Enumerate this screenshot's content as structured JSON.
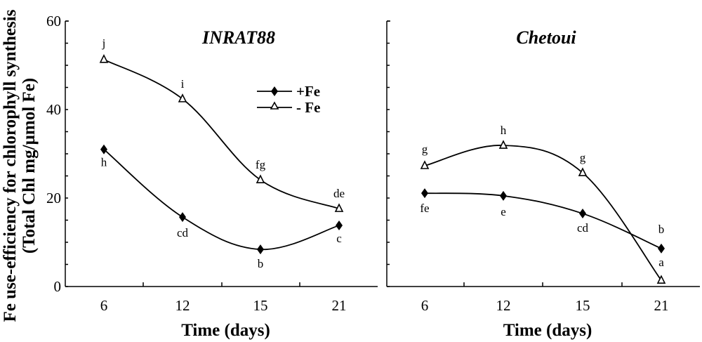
{
  "chart_data": [
    {
      "type": "line",
      "title": "INRAT88",
      "xlabel": "Time (days)",
      "ylabel": "Fe use-efficiency for chlorophyll synthesis (Total Chl mg/µmol Fe)",
      "categories": [
        "6",
        "12",
        "15",
        "21"
      ],
      "ylim": [
        0,
        60
      ],
      "yticks": [
        0,
        20,
        40,
        60
      ],
      "grid": false,
      "legend_position": "top-right",
      "series": [
        {
          "name": "+Fe",
          "marker": "filled-diamond",
          "values": [
            31.0,
            15.7,
            8.4,
            13.8
          ],
          "letters": [
            "h",
            "cd",
            "b",
            "c"
          ]
        },
        {
          "name": "- Fe",
          "marker": "open-triangle",
          "values": [
            51.3,
            42.4,
            24.1,
            17.6
          ],
          "letters": [
            "j",
            "i",
            "fg",
            "de"
          ]
        }
      ]
    },
    {
      "type": "line",
      "title": "Chetoui",
      "xlabel": "Time (days)",
      "ylabel": "",
      "categories": [
        "6",
        "12",
        "15",
        "21"
      ],
      "ylim": [
        0,
        60
      ],
      "grid": false,
      "series": [
        {
          "name": "+Fe",
          "marker": "filled-diamond",
          "values": [
            21.1,
            20.5,
            16.5,
            8.6
          ],
          "letters": [
            "fe",
            "e",
            "cd",
            "b"
          ]
        },
        {
          "name": "- Fe",
          "marker": "open-triangle",
          "values": [
            27.3,
            31.9,
            25.7,
            1.4
          ],
          "letters": [
            "g",
            "h",
            "g",
            "a"
          ]
        }
      ]
    }
  ],
  "labels": {
    "ylabel_line1": "Fe use-efficiency for chlorophyll synthesis",
    "ylabel_line2": "(Total Chl mg/µmol Fe)",
    "xlabel": "Time (days)",
    "legend_plus": "+Fe",
    "legend_minus": "- Fe"
  }
}
